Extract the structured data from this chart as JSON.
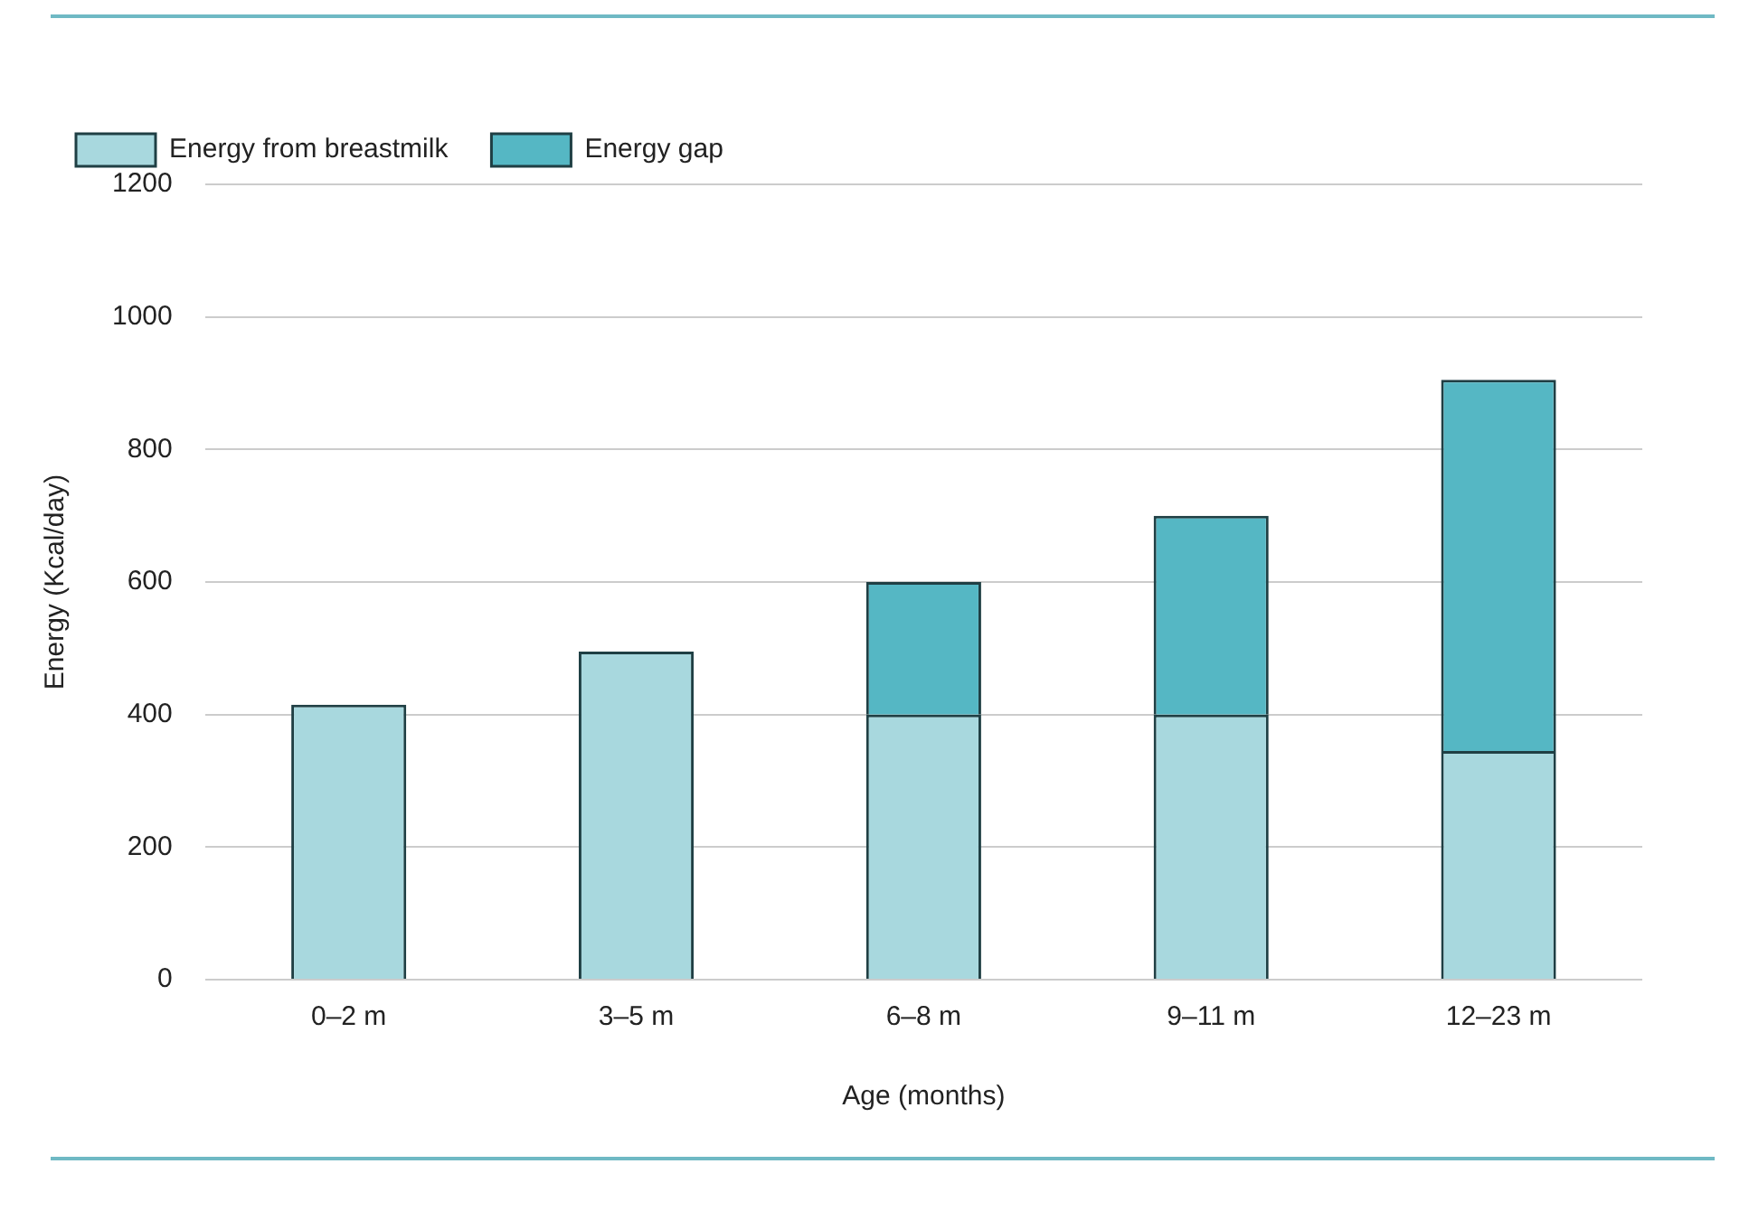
{
  "chart_data": {
    "type": "bar",
    "stacked": true,
    "xlabel": "Age (months)",
    "ylabel": "Energy (Kcal/day)",
    "categories": [
      "0–2 m",
      "3–5 m",
      "6–8 m",
      "9–11 m",
      "12–23 m"
    ],
    "series": [
      {
        "name": "Energy from breastmilk",
        "color": "#a8d8de",
        "values": [
          415,
          495,
          400,
          400,
          345
        ]
      },
      {
        "name": "Energy gap",
        "color": "#55b7c4",
        "values": [
          0,
          0,
          200,
          300,
          560
        ]
      }
    ],
    "ylim": [
      0,
      1200
    ],
    "yticks": [
      0,
      200,
      400,
      600,
      800,
      1000,
      1200
    ],
    "grid": "y",
    "legend": "top left"
  }
}
